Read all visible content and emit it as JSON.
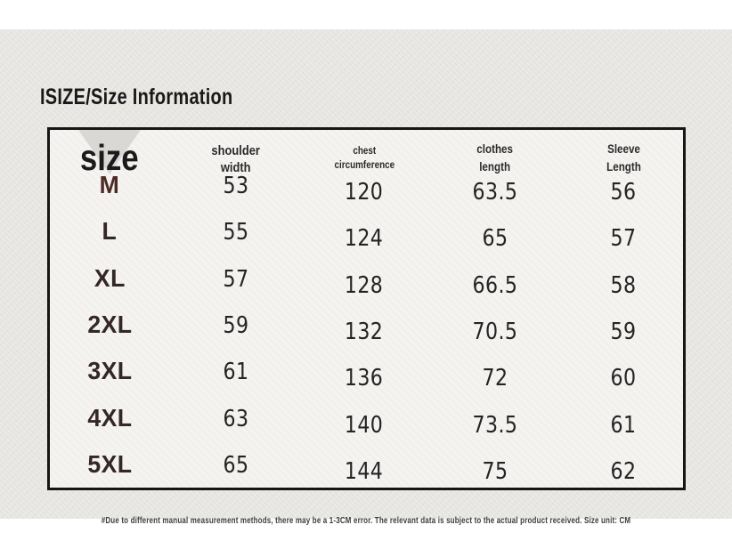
{
  "page": {
    "title": "ISIZE/Size Information",
    "footnote": "#Due to different manual measurement methods, there may be a 1-3CM error. The relevant data is subject to the actual product received. Size unit: CM",
    "unit": "CM"
  },
  "size_table": {
    "columns": [
      {
        "id": "size",
        "line1": "size",
        "line2": ""
      },
      {
        "id": "shoulder_width",
        "line1": "shoulder",
        "line2": "width"
      },
      {
        "id": "chest_circumference",
        "line1": "chest",
        "line2": "circumference"
      },
      {
        "id": "clothes_length",
        "line1": "clothes",
        "line2": "length"
      },
      {
        "id": "sleeve_length",
        "line1": "Sleeve",
        "line2": "Length"
      }
    ]
  },
  "chart_data": {
    "type": "table",
    "title": "ISIZE/Size Information",
    "columns": [
      "size",
      "shoulder width",
      "chest circumference",
      "clothes length",
      "Sleeve Length"
    ],
    "rows": [
      [
        "M",
        "53",
        "120",
        "63.5",
        "56"
      ],
      [
        "L",
        "55",
        "124",
        "65",
        "57"
      ],
      [
        "XL",
        "57",
        "128",
        "66.5",
        "58"
      ],
      [
        "2XL",
        "59",
        "132",
        "70.5",
        "59"
      ],
      [
        "3XL",
        "61",
        "136",
        "72",
        "60"
      ],
      [
        "4XL",
        "63",
        "140",
        "73.5",
        "61"
      ],
      [
        "5XL",
        "65",
        "144",
        "75",
        "62"
      ]
    ],
    "note": "#Due to different manual measurement methods, there may be a 1-3CM error. The relevant data is subject to the actual product received. Size unit: CM",
    "unit": "CM"
  },
  "icons": {
    "watermark": "triangle-down"
  },
  "colors": {
    "page_background": "#ffffff",
    "panel_background": "#e9e8e5",
    "table_background": "#f4f3f0",
    "table_border": "#161616",
    "title_text": "#191919",
    "header_text": "#2b2b2b",
    "value_text": "#242424",
    "size_label_text": "#342726",
    "size_label_m_text": "#4c2b26",
    "watermark": "#d9d8d4",
    "note_text": "#3e3e3e"
  }
}
